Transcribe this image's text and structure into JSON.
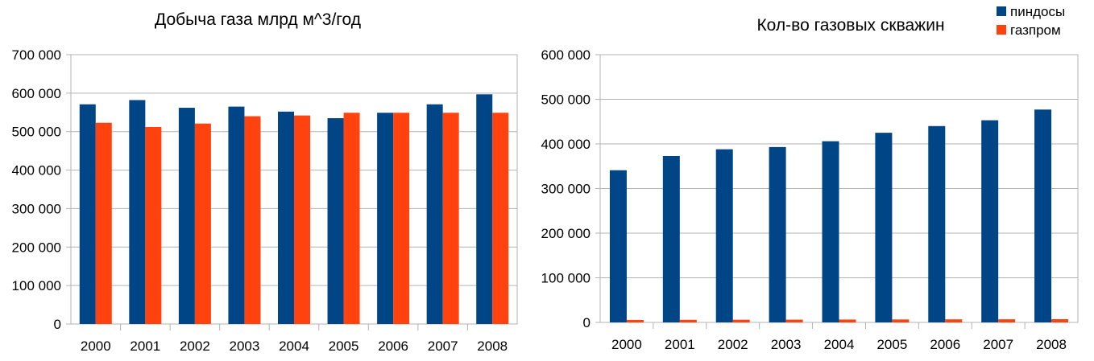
{
  "colors": {
    "series1": "#004586",
    "series2": "#ff420e"
  },
  "legend": {
    "items": [
      {
        "label": "пиндосы"
      },
      {
        "label": "газпром"
      }
    ]
  },
  "chart_data": [
    {
      "type": "bar",
      "title": "Добыча газа млрд м^3/год",
      "categories": [
        "2000",
        "2001",
        "2002",
        "2003",
        "2004",
        "2005",
        "2006",
        "2007",
        "2008"
      ],
      "series": [
        {
          "name": "пиндосы",
          "values": [
            571000,
            582000,
            562000,
            565000,
            552000,
            535000,
            549000,
            571000,
            597000
          ]
        },
        {
          "name": "газпром",
          "values": [
            523000,
            512000,
            521000,
            540000,
            542000,
            549000,
            549000,
            549000,
            549000
          ]
        }
      ],
      "ylim": [
        0,
        700000
      ],
      "yticks": [
        0,
        100000,
        200000,
        300000,
        400000,
        500000,
        600000,
        700000
      ],
      "ytick_labels": [
        "0",
        "100 000",
        "200 000",
        "300 000",
        "400 000",
        "500 000",
        "600 000",
        "700 000"
      ],
      "grid": true
    },
    {
      "type": "bar",
      "title": "Кол-во газовых скважин",
      "categories": [
        "2000",
        "2001",
        "2002",
        "2003",
        "2004",
        "2005",
        "2006",
        "2007",
        "2008"
      ],
      "series": [
        {
          "name": "пиндосы",
          "values": [
            341000,
            373000,
            388000,
            393000,
            406000,
            425000,
            440000,
            453000,
            477000
          ]
        },
        {
          "name": "газпром",
          "values": [
            5500,
            5800,
            6000,
            6200,
            6400,
            6600,
            6800,
            7000,
            7200
          ]
        }
      ],
      "ylim": [
        0,
        600000
      ],
      "yticks": [
        0,
        100000,
        200000,
        300000,
        400000,
        500000,
        600000
      ],
      "ytick_labels": [
        "0",
        "100 000",
        "200 000",
        "300 000",
        "400 000",
        "500 000",
        "600 000"
      ],
      "grid": true,
      "legend_position": "top-right"
    }
  ]
}
